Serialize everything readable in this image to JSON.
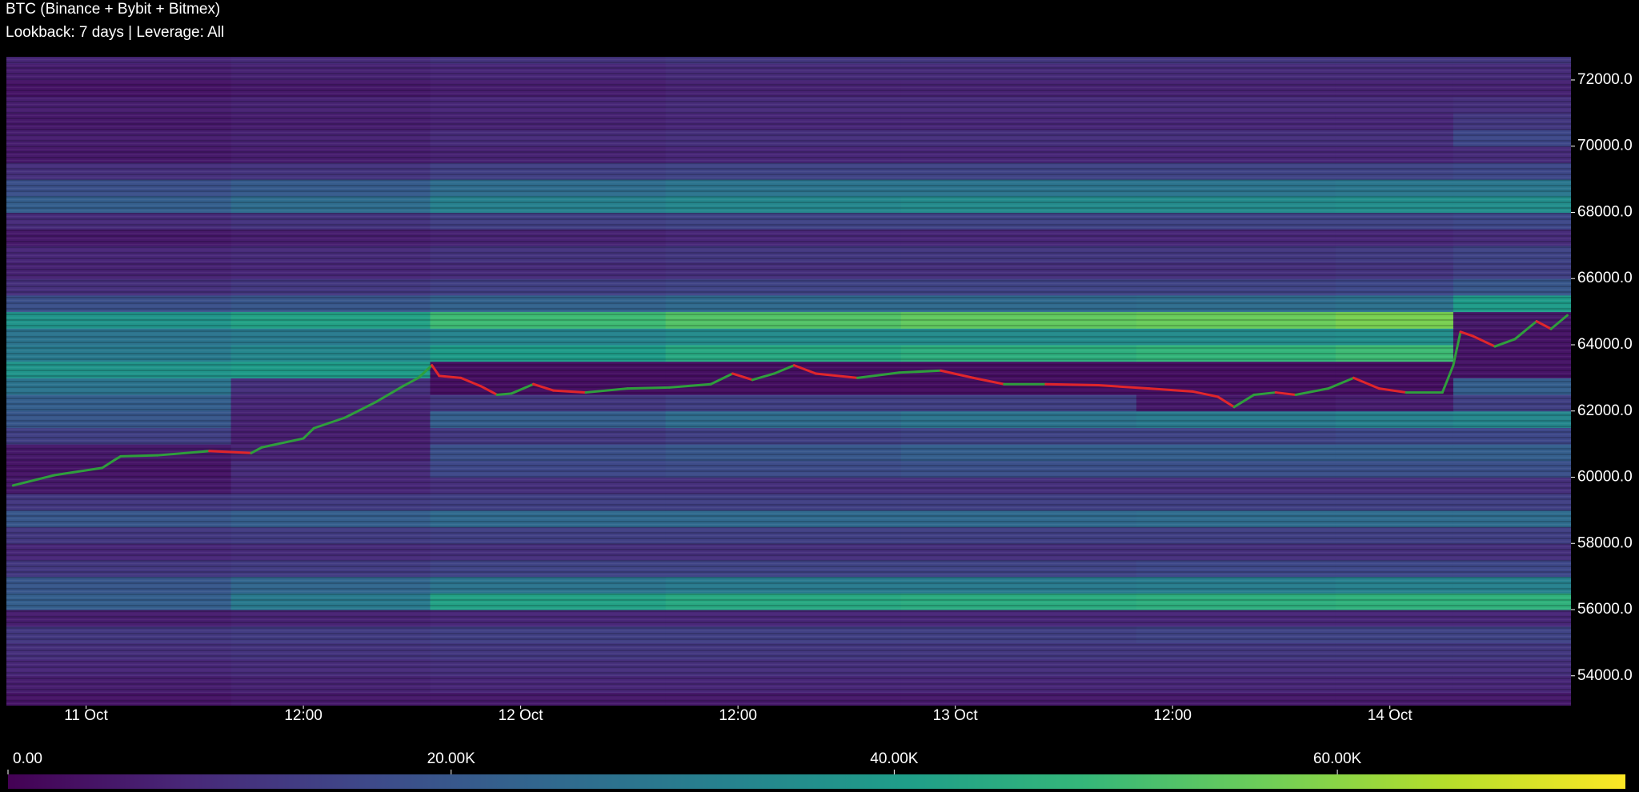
{
  "chart_data": {
    "type": "heatmap",
    "title": "BTC (Binance + Bybit + Bitmex)",
    "subtitle": "Lookback: 7 days | Leverage: All",
    "xlim": [
      -4.4,
      82
    ],
    "xticks": [
      {
        "value": 0,
        "label": "11 Oct"
      },
      {
        "value": 12,
        "label": "12:00"
      },
      {
        "value": 24,
        "label": "12 Oct"
      },
      {
        "value": 36,
        "label": "12:00"
      },
      {
        "value": 48,
        "label": "13 Oct"
      },
      {
        "value": 60,
        "label": "12:00"
      },
      {
        "value": 72,
        "label": "14 Oct"
      }
    ],
    "ylim": [
      53100,
      72700
    ],
    "yticks": [
      {
        "value": 54000,
        "label": "54000.0"
      },
      {
        "value": 56000,
        "label": "56000.0"
      },
      {
        "value": 58000,
        "label": "58000.0"
      },
      {
        "value": 60000,
        "label": "60000.0"
      },
      {
        "value": 62000,
        "label": "62000.0"
      },
      {
        "value": 64000,
        "label": "64000.0"
      },
      {
        "value": 66000,
        "label": "66000.0"
      },
      {
        "value": 68000,
        "label": "68000.0"
      },
      {
        "value": 70000,
        "label": "70000.0"
      },
      {
        "value": 72000,
        "label": "72000.0"
      }
    ],
    "x_bins": [
      -4.4,
      8,
      19,
      32,
      45,
      58,
      69,
      75.5,
      82
    ],
    "y_bins": [
      53000,
      53500,
      54000,
      54500,
      55000,
      55500,
      56000,
      56500,
      57000,
      57500,
      58000,
      58500,
      59000,
      59500,
      60000,
      60500,
      61000,
      61500,
      62000,
      62500,
      63000,
      63500,
      64000,
      64500,
      65000,
      65500,
      66000,
      66500,
      67000,
      67500,
      68000,
      68500,
      69000,
      69500,
      70000,
      70500,
      71000,
      71500,
      72000,
      72500,
      73000
    ],
    "z": [
      [
        4000,
        5000,
        5000,
        5000,
        5000,
        5000,
        5000,
        5000
      ],
      [
        6000,
        7000,
        8000,
        8000,
        8000,
        8000,
        8000,
        8000
      ],
      [
        8000,
        9000,
        10000,
        10000,
        10000,
        10000,
        10000,
        10000
      ],
      [
        10000,
        11000,
        12000,
        12000,
        12000,
        12000,
        12000,
        12000
      ],
      [
        12000,
        13000,
        14000,
        14000,
        14000,
        15000,
        15000,
        15000
      ],
      [
        6000,
        7000,
        8000,
        8000,
        8000,
        8000,
        8000,
        8000
      ],
      [
        22000,
        30000,
        42000,
        44000,
        45000,
        46000,
        47000,
        47000
      ],
      [
        20000,
        24000,
        28000,
        30000,
        30000,
        31000,
        32000,
        32000
      ],
      [
        12000,
        13000,
        15000,
        15000,
        15000,
        16000,
        16000,
        16000
      ],
      [
        8000,
        9000,
        10000,
        10000,
        10000,
        10000,
        10000,
        10000
      ],
      [
        12000,
        13000,
        14000,
        14000,
        14000,
        14000,
        14000,
        14000
      ],
      [
        20000,
        22000,
        25000,
        25000,
        25000,
        26000,
        26000,
        26000
      ],
      [
        12000,
        13000,
        14000,
        14000,
        14000,
        14000,
        14000,
        14000
      ],
      [
        5000,
        8000,
        10000,
        10000,
        10000,
        10000,
        10000,
        10000
      ],
      [
        4000,
        9000,
        16000,
        17000,
        18000,
        18000,
        18000,
        18000
      ],
      [
        5000,
        7000,
        18000,
        20000,
        22000,
        22000,
        22000,
        22000
      ],
      [
        14000,
        6000,
        12000,
        14000,
        15000,
        15000,
        16000,
        16000
      ],
      [
        20000,
        7000,
        22000,
        26000,
        28000,
        30000,
        32000,
        34000
      ],
      [
        22000,
        8000,
        12000,
        14000,
        14000,
        5000,
        6000,
        14000
      ],
      [
        28000,
        10000,
        3000,
        3000,
        3000,
        3000,
        3000,
        22000
      ],
      [
        38000,
        40000,
        3000,
        3000,
        3000,
        3000,
        3000,
        4000
      ],
      [
        30000,
        34000,
        40000,
        44000,
        46000,
        48000,
        50000,
        4000
      ],
      [
        28000,
        30000,
        33000,
        35000,
        35000,
        35000,
        36000,
        4000
      ],
      [
        38000,
        42000,
        50000,
        53000,
        55000,
        56000,
        58000,
        5000
      ],
      [
        18000,
        20000,
        23000,
        25000,
        25000,
        26000,
        27000,
        40000
      ],
      [
        10000,
        12000,
        14000,
        15000,
        15000,
        15000,
        16000,
        20000
      ],
      [
        7000,
        8000,
        9000,
        10000,
        10000,
        10000,
        11000,
        14000
      ],
      [
        8000,
        9000,
        11000,
        12000,
        12000,
        12000,
        13000,
        15000
      ],
      [
        5000,
        6000,
        7000,
        8000,
        8000,
        8000,
        8000,
        9000
      ],
      [
        9000,
        11000,
        14000,
        15000,
        15000,
        15000,
        15000,
        16000
      ],
      [
        22000,
        26000,
        32000,
        34000,
        35000,
        35000,
        36000,
        36000
      ],
      [
        18000,
        21000,
        26000,
        28000,
        28000,
        28000,
        29000,
        29000
      ],
      [
        10000,
        11000,
        14000,
        15000,
        15000,
        15000,
        15000,
        16000
      ],
      [
        5000,
        6000,
        7000,
        8000,
        8000,
        8000,
        8000,
        9000
      ],
      [
        6000,
        7000,
        9000,
        10000,
        10000,
        10000,
        10000,
        16000
      ],
      [
        5000,
        6000,
        7000,
        8000,
        8000,
        8000,
        8000,
        12000
      ],
      [
        6000,
        7000,
        8000,
        9000,
        9000,
        9000,
        9000,
        10000
      ],
      [
        4000,
        5000,
        6000,
        7000,
        7000,
        7000,
        7000,
        7000
      ],
      [
        6000,
        7000,
        8000,
        9000,
        9000,
        9000,
        9000,
        9000
      ],
      [
        8000,
        9000,
        11000,
        12000,
        12000,
        12000,
        12000,
        12000
      ]
    ],
    "colorscale": [
      "#440154",
      "#482878",
      "#3e4989",
      "#31688e",
      "#26828e",
      "#1f9e89",
      "#35b779",
      "#6ece58",
      "#b5de2b",
      "#fde725"
    ],
    "clim": [
      0,
      73000
    ],
    "cticks": [
      {
        "value": 0,
        "label": "0.00"
      },
      {
        "value": 20000,
        "label": "20.00K"
      },
      {
        "value": 40000,
        "label": "40.00K"
      },
      {
        "value": 60000,
        "label": "60.00K"
      }
    ],
    "price": {
      "up_color": "#2f9e3c",
      "down_color": "#e0262b",
      "x": [
        -4.03,
        -1.73,
        0.89,
        1.62,
        1.91,
        3.93,
        6.81,
        9.12,
        9.7,
        12.0,
        12.58,
        14.3,
        16.0,
        17.5,
        18.35,
        19.1,
        19.5,
        20.7,
        21.8,
        22.7,
        23.5,
        24.7,
        25.8,
        27.6,
        29.9,
        32.2,
        34.5,
        35.7,
        36.8,
        38.0,
        39.1,
        40.3,
        42.6,
        44.9,
        47.2,
        49.0,
        50.7,
        53.0,
        55.9,
        58.7,
        61.1,
        62.5,
        63.4,
        64.5,
        65.7,
        66.8,
        68.6,
        70.0,
        71.4,
        72.9,
        74.9,
        75.5,
        75.9,
        76.6,
        77.8,
        78.9,
        80.1,
        80.9,
        81.8
      ],
      "values": [
        59750,
        60063,
        60280,
        60536,
        60630,
        60660,
        60790,
        60730,
        60900,
        61170,
        61480,
        61800,
        62270,
        62750,
        63000,
        63380,
        63060,
        63000,
        62750,
        62490,
        62530,
        62810,
        62620,
        62560,
        62680,
        62710,
        62810,
        63130,
        62940,
        63130,
        63380,
        63130,
        63000,
        63160,
        63220,
        63000,
        62810,
        62810,
        62780,
        62680,
        62590,
        62430,
        62120,
        62490,
        62560,
        62490,
        62680,
        63000,
        62680,
        62560,
        62560,
        63380,
        64390,
        64260,
        63950,
        64170,
        64710,
        64480,
        64890
      ]
    }
  }
}
